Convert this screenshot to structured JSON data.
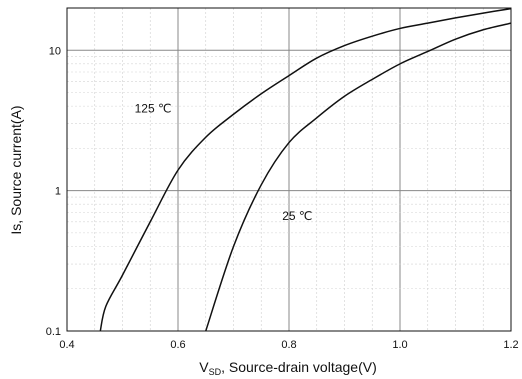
{
  "chart_data": {
    "type": "line",
    "xlabel": "V",
    "xlabel_sub": "SD",
    "xlabel_rest": ", Source-drain voltage(V)",
    "ylabel": "Is, Source current(A)",
    "xlim": [
      0.4,
      1.2
    ],
    "ylim": [
      0.1,
      20
    ],
    "y_scale": "log",
    "grid": true,
    "x_ticks": [
      0.4,
      0.6,
      0.8,
      1.0,
      1.2
    ],
    "x_tick_labels": [
      "0.4",
      "0.6",
      "0.8",
      "1.0",
      "1.2"
    ],
    "y_ticks": [
      0.1,
      1,
      10
    ],
    "y_tick_labels": [
      "0.1",
      "1",
      "10"
    ],
    "series": [
      {
        "name": "125 ℃",
        "x": [
          0.46,
          0.47,
          0.5,
          0.55,
          0.6,
          0.65,
          0.7,
          0.75,
          0.8,
          0.85,
          0.9,
          0.95,
          1.0,
          1.05,
          1.1,
          1.15,
          1.2
        ],
        "y": [
          0.1,
          0.15,
          0.25,
          0.6,
          1.4,
          2.4,
          3.5,
          4.9,
          6.6,
          8.8,
          10.8,
          12.6,
          14.3,
          15.6,
          17.0,
          18.4,
          19.8
        ]
      },
      {
        "name": "25 ℃",
        "x": [
          0.65,
          0.7,
          0.75,
          0.8,
          0.85,
          0.9,
          0.95,
          1.0,
          1.05,
          1.1,
          1.15,
          1.2
        ],
        "y": [
          0.1,
          0.4,
          1.1,
          2.2,
          3.3,
          4.7,
          6.2,
          8.0,
          9.8,
          12.0,
          14.0,
          15.6
        ]
      }
    ],
    "annotations": [
      {
        "text": "125 ℃",
        "x": 0.555,
        "y": 3.6
      },
      {
        "text": "25 ℃",
        "x": 0.815,
        "y": 0.62
      }
    ]
  }
}
